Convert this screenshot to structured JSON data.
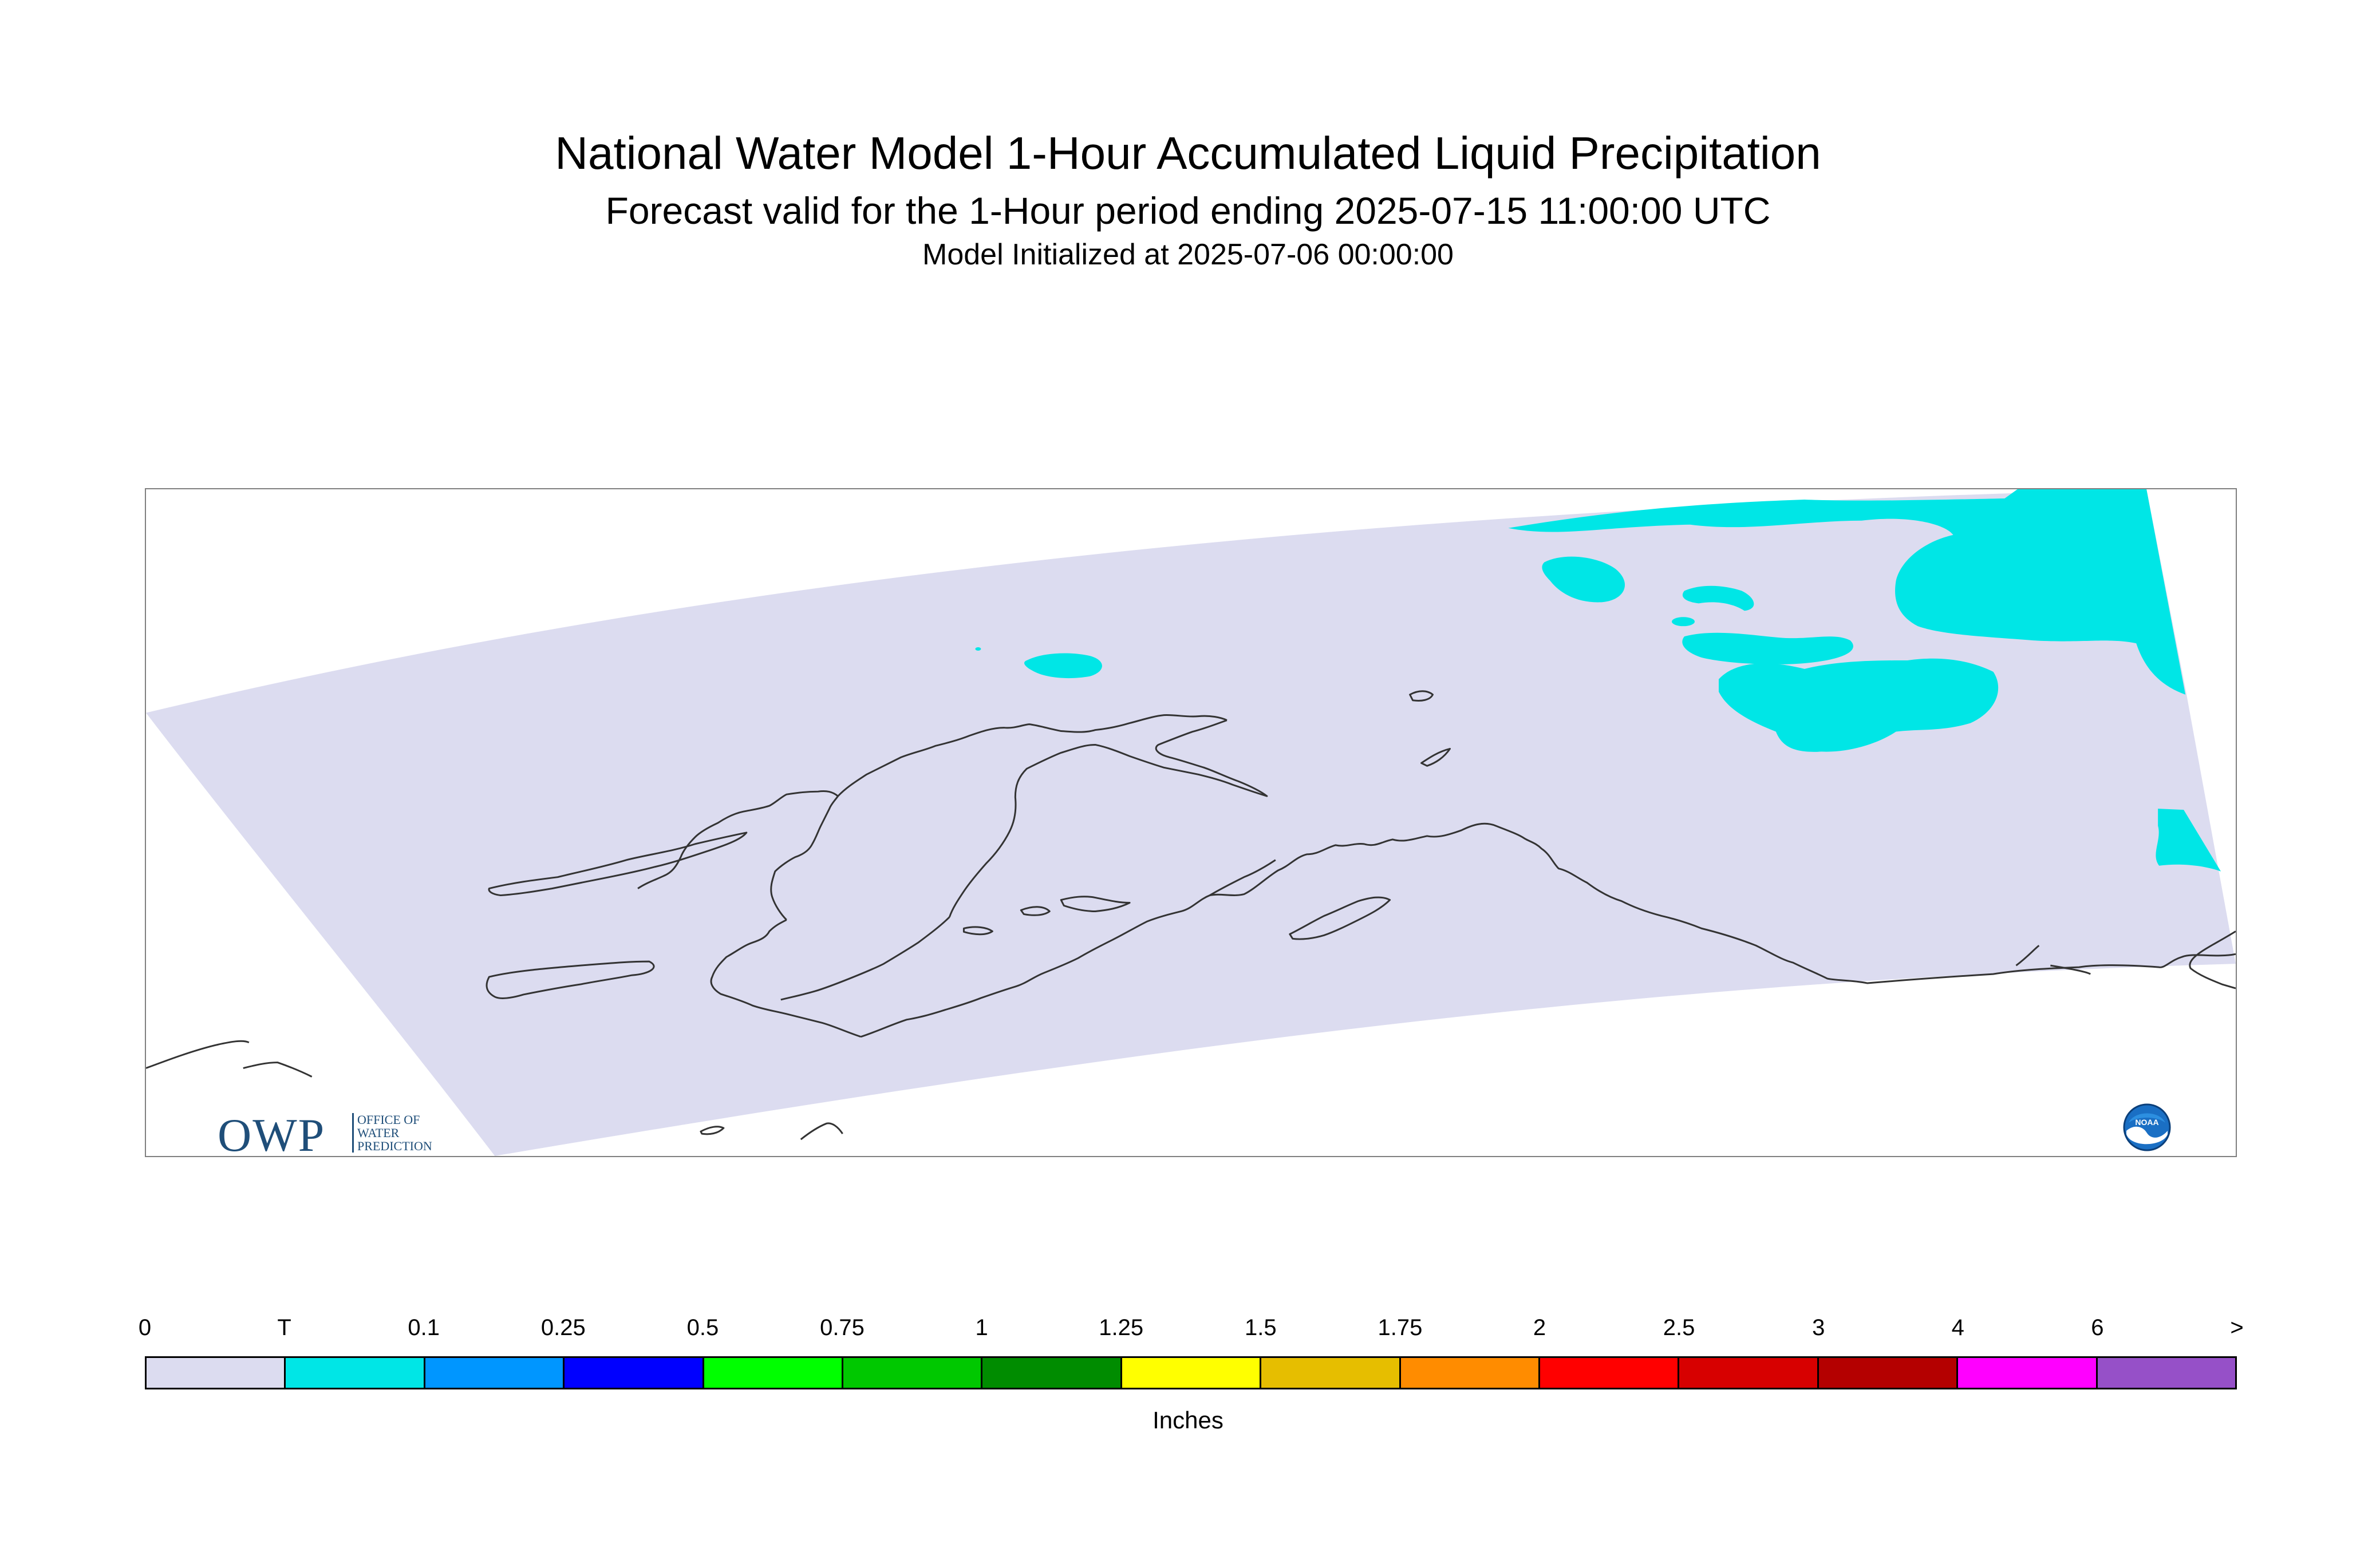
{
  "title": "National Water Model 1-Hour Accumulated Liquid Precipitation",
  "subtitle": "Forecast valid for the 1-Hour period ending 2025-07-15 11:00:00 UTC",
  "init_line": "Model Initialized at 2025-07-06 00:00:00",
  "logos": {
    "owp_letters": "OWP",
    "owp_sub": [
      "OFFICE OF",
      "WATER",
      "PREDICTION"
    ],
    "noaa": "NOAA"
  },
  "colors": {
    "domain_fill": "#dcdcf0",
    "trace_fill": "#00e6e6",
    "coastline": "#333333"
  },
  "legend": {
    "units": "Inches",
    "tick_labels": [
      "0",
      "T",
      "0.1",
      "0.25",
      "0.5",
      "0.75",
      "1",
      "1.25",
      "1.5",
      "1.75",
      "2",
      "2.5",
      "3",
      "4",
      "6",
      ">"
    ],
    "bins": [
      {
        "color": "#dcdcf0"
      },
      {
        "color": "#00e6e6"
      },
      {
        "color": "#0096ff"
      },
      {
        "color": "#0000ff"
      },
      {
        "color": "#00ff00"
      },
      {
        "color": "#00c800"
      },
      {
        "color": "#008c00"
      },
      {
        "color": "#ffff00"
      },
      {
        "color": "#e6be00"
      },
      {
        "color": "#ff8c00"
      },
      {
        "color": "#ff0000"
      },
      {
        "color": "#d70000"
      },
      {
        "color": "#b40000"
      },
      {
        "color": "#ff00ff"
      },
      {
        "color": "#9650c8"
      }
    ]
  }
}
